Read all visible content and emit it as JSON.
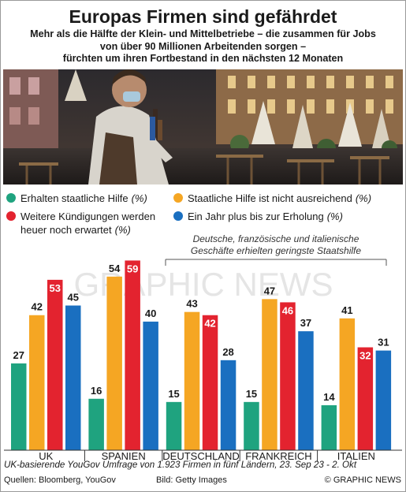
{
  "header": {
    "title": "Europas Firmen sind gefährdet",
    "subtitle_lines": [
      "Mehr als die Hälfte der Klein- und Mittelbetriebe – die zusammen für Jobs",
      "von über 90 Millionen Arbeitenden sorgen –",
      "fürchten um ihren Fortbestand in den nächsten 12 Monaten"
    ]
  },
  "watermark": "GRAPHIC NEWS",
  "chart_data": {
    "type": "bar",
    "categories": [
      "UK",
      "SPANIEN",
      "DEUTSCHLAND",
      "FRANKREICH",
      "ITALIEN"
    ],
    "series": [
      {
        "name": "Erhalten staatliche Hilfe (%)",
        "color": "#1fa37f",
        "values": [
          27,
          16,
          15,
          15,
          14
        ]
      },
      {
        "name": "Staatliche Hilfe ist nicht ausreichend (%)",
        "color": "#f5a623",
        "values": [
          42,
          54,
          43,
          47,
          41
        ]
      },
      {
        "name": "Weitere Kündigungen werden heuer noch erwartet (%)",
        "color": "#e3232f",
        "values": [
          53,
          59,
          42,
          46,
          32
        ]
      },
      {
        "name": "Ein Jahr plus bis zur Erholung (%)",
        "color": "#1a6fc0",
        "values": [
          45,
          40,
          28,
          37,
          31
        ]
      }
    ],
    "legend_lines": [
      [
        "Erhalten staatliche Hilfe",
        "(%)"
      ],
      [
        "Staatliche Hilfe ist nicht ausreichend",
        "(%)"
      ],
      [
        "Weitere Kündigungen werden",
        ""
      ],
      [
        "heuer noch erwartet",
        "(%)"
      ],
      [
        "Ein Jahr plus bis zur Erholung",
        "(%)"
      ]
    ],
    "annotation_lines": [
      "Deutsche, französische und italienische",
      "Geschäfte erhielten geringste Staatshilfe"
    ],
    "ylim": [
      0,
      65
    ],
    "grid": false,
    "legend_position": "top"
  },
  "footer": {
    "note": "UK-basierende YouGov Umfrage von 1.923 Firmen in fünf Ländern, 23. Sep 23 - 2. Okt",
    "sources": "Quellen: Bloomberg, YouGov",
    "credit": "Bild: Getty Images",
    "copyright": "© GRAPHIC NEWS"
  }
}
